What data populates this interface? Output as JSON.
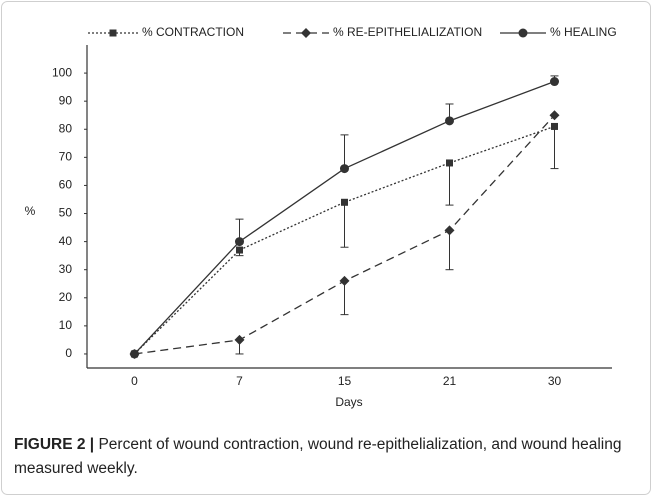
{
  "chart_data": {
    "type": "line",
    "categories": [
      "0",
      "7",
      "15",
      "21",
      "30"
    ],
    "series": [
      {
        "name": "% CONTRACTION",
        "color": "#333333",
        "dash": "2,2",
        "marker": "square",
        "values": [
          0,
          37,
          54,
          68,
          81
        ],
        "errors": [
          0,
          2,
          16,
          15,
          15
        ],
        "error_direction": "down"
      },
      {
        "name": "% RE-EPITHELIALIZATION",
        "color": "#333333",
        "dash": "8,5",
        "marker": "diamond",
        "values": [
          0,
          5,
          26,
          44,
          85
        ],
        "errors": [
          0,
          5,
          12,
          14,
          0
        ],
        "error_direction": "down"
      },
      {
        "name": "% HEALING",
        "color": "#333333",
        "dash": "none",
        "marker": "circle",
        "values": [
          0,
          40,
          66,
          83,
          97
        ],
        "errors": [
          0,
          8,
          12,
          6,
          2
        ],
        "error_direction": "up"
      }
    ],
    "ylim": [
      -5,
      110
    ],
    "yticks": [
      0,
      10,
      20,
      30,
      40,
      50,
      60,
      70,
      80,
      90,
      100
    ],
    "ylabel": "%",
    "xlabel": "Days",
    "legend": "top",
    "caption_label": "FIGURE 2 |",
    "caption": "Percent of wound contraction, wound re-epithelialization, and wound healing measured weekly."
  }
}
